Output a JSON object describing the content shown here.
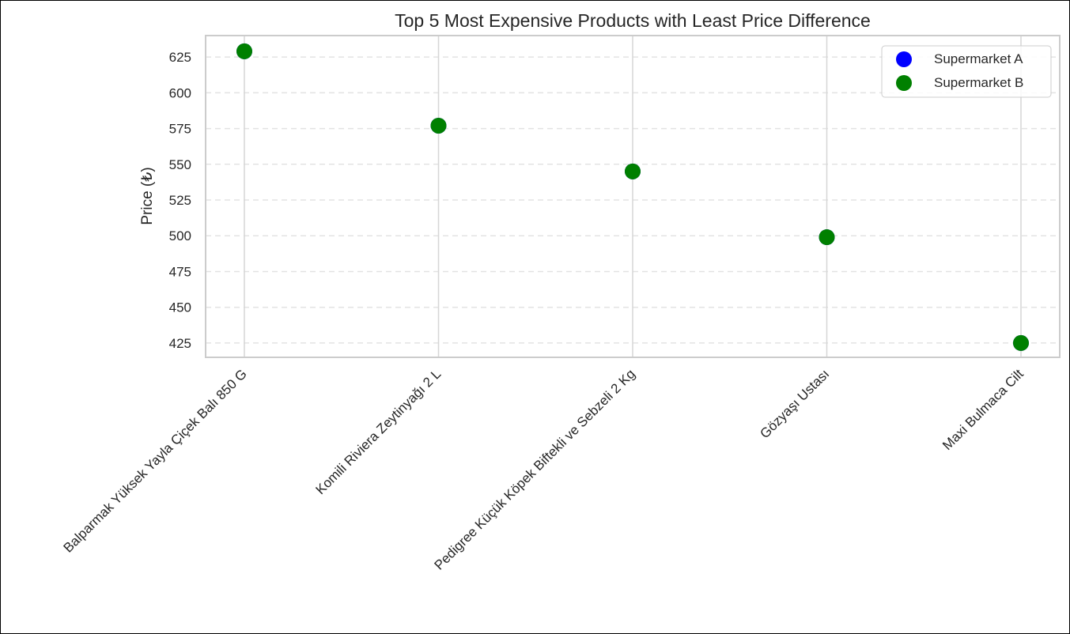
{
  "chart_data": {
    "type": "scatter",
    "title": "Top 5 Most Expensive Products with Least Price Difference",
    "xlabel": "",
    "ylabel": "Price (₺)",
    "categories": [
      "Balparmak Yüksek Yayla Çiçek Balı 850 G",
      "Komili Riviera Zeytinyağı 2 L",
      "Pedigree Küçük Köpek Biftekli ve Sebzeli 2 Kg",
      "Gözyaşı Ustası",
      "Maxi Bulmaca Cilt"
    ],
    "series": [
      {
        "name": "Supermarket A",
        "color": "#0000ff",
        "values": [
          629,
          577,
          545,
          499,
          425
        ]
      },
      {
        "name": "Supermarket B",
        "color": "#008000",
        "values": [
          629,
          577,
          545,
          499,
          425
        ]
      }
    ],
    "ylim": [
      415,
      640
    ],
    "yticks": [
      425,
      450,
      475,
      500,
      525,
      550,
      575,
      600,
      625
    ],
    "grid": {
      "x": true,
      "y": true,
      "y_style": "dashed"
    },
    "legend_position": "top-right"
  }
}
